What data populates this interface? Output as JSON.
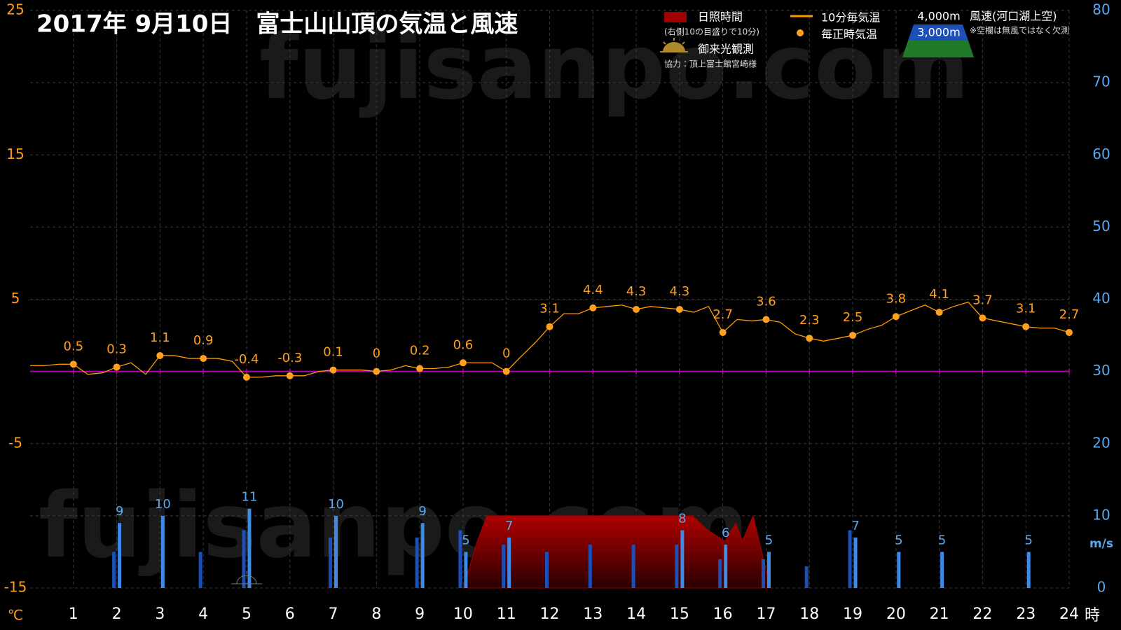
{
  "chart_data": {
    "type": "combo",
    "title": "2017年  9月10日　富士山山頂の気温と風速",
    "watermark": "fujisanpo.com",
    "xlabel": "時",
    "ylabel": "℃",
    "y2label": "m/s",
    "xlim": [
      0,
      24
    ],
    "xticks": [
      1,
      2,
      3,
      4,
      5,
      6,
      7,
      8,
      9,
      10,
      11,
      12,
      13,
      14,
      15,
      16,
      17,
      18,
      19,
      20,
      21,
      22,
      23,
      24
    ],
    "ylim": [
      -15,
      25
    ],
    "yticks": [
      -15,
      -5,
      5,
      15,
      25
    ],
    "y2lim": [
      0,
      80
    ],
    "y2ticks": [
      0,
      10,
      20,
      30,
      40,
      50,
      60,
      70,
      80
    ],
    "grid": true,
    "reference_line": {
      "value": 0,
      "color": "#b000b0"
    },
    "legend": "top-right",
    "legend_notes": [
      "(右側10の目盛りで10分)",
      "協力：頂上富士館宮崎様",
      "風速(河口湖上空)",
      "※空欄は無風ではなく欠測"
    ],
    "sunrise": {
      "name": "御来光観測",
      "x": 5
    },
    "series": [
      {
        "name": "10分毎気温",
        "type": "line",
        "color": "#ff9900",
        "x": [
          0,
          0.33,
          0.67,
          1,
          1.33,
          1.67,
          2,
          2.33,
          2.67,
          3,
          3.33,
          3.67,
          4,
          4.33,
          4.67,
          5,
          5.33,
          5.67,
          6,
          6.33,
          6.67,
          7,
          7.33,
          7.67,
          8,
          8.33,
          8.67,
          9,
          9.33,
          9.67,
          10,
          10.33,
          10.67,
          11,
          11.33,
          11.67,
          12,
          12.33,
          12.67,
          13,
          13.33,
          13.67,
          14,
          14.33,
          14.67,
          15,
          15.33,
          15.67,
          16,
          16.33,
          16.67,
          17,
          17.33,
          17.67,
          18,
          18.33,
          18.67,
          19,
          19.33,
          19.67,
          20,
          20.33,
          20.67,
          21,
          21.33,
          21.67,
          22,
          22.33,
          22.67,
          23,
          23.33,
          23.67,
          24
        ],
        "values": [
          0.4,
          0.4,
          0.5,
          0.5,
          -0.2,
          -0.1,
          0.3,
          0.6,
          -0.2,
          1.1,
          1.1,
          0.9,
          0.9,
          0.9,
          0.7,
          -0.4,
          -0.4,
          -0.3,
          -0.3,
          -0.3,
          0.0,
          0.1,
          0.1,
          0.1,
          0,
          0.1,
          0.4,
          0.2,
          0.2,
          0.3,
          0.6,
          0.6,
          0.6,
          0,
          1.0,
          2.0,
          3.1,
          4.0,
          4.0,
          4.4,
          4.5,
          4.6,
          4.3,
          4.5,
          4.4,
          4.3,
          4.1,
          4.5,
          2.7,
          3.6,
          3.5,
          3.6,
          3.4,
          2.6,
          2.3,
          2.1,
          2.3,
          2.5,
          2.9,
          3.2,
          3.8,
          4.2,
          4.6,
          4.1,
          4.5,
          4.8,
          3.7,
          3.5,
          3.3,
          3.1,
          3.0,
          3.0,
          2.7
        ]
      },
      {
        "name": "毎正時気温",
        "type": "scatter",
        "color": "#ffa020",
        "labels": true,
        "x": [
          1,
          2,
          3,
          4,
          5,
          6,
          7,
          8,
          9,
          10,
          11,
          12,
          13,
          14,
          15,
          16,
          17,
          18,
          19,
          20,
          21,
          22,
          23,
          24
        ],
        "values": [
          0.5,
          0.3,
          1.1,
          0.9,
          -0.4,
          -0.3,
          0.1,
          0,
          0.2,
          0.6,
          0,
          3.1,
          4.4,
          4.3,
          4.3,
          2.7,
          3.6,
          2.3,
          2.5,
          3.8,
          4.1,
          3.7,
          3.1,
          2.7
        ]
      },
      {
        "name": "日照時間",
        "type": "area",
        "axis": "y2",
        "color": "#a00000",
        "x": [
          10,
          10.33,
          10.55,
          15.3,
          15.65,
          16.05,
          16.3,
          16.45,
          16.7,
          17.1
        ],
        "values": [
          0,
          6.5,
          10,
          10,
          8,
          6.5,
          9,
          6.5,
          10,
          0
        ]
      },
      {
        "name": "4,000m",
        "type": "bar",
        "axis": "y2",
        "color": "#3f8ae6",
        "labels": true,
        "x": [
          1,
          2,
          3,
          4,
          5,
          6,
          7,
          8,
          9,
          10,
          11,
          12,
          13,
          14,
          15,
          16,
          17,
          18,
          19,
          20,
          21,
          22,
          23,
          24
        ],
        "values": [
          null,
          9,
          10,
          null,
          11,
          null,
          10,
          null,
          9,
          5,
          7,
          null,
          null,
          null,
          8,
          6,
          5,
          null,
          7,
          5,
          5,
          null,
          5,
          null
        ]
      },
      {
        "name": "3,000m",
        "type": "bar",
        "axis": "y2",
        "color": "#1c4fb8",
        "labels": false,
        "x": [
          1,
          2,
          3,
          4,
          5,
          6,
          7,
          8,
          9,
          10,
          11,
          12,
          13,
          14,
          15,
          16,
          17,
          18,
          19,
          20,
          21,
          22,
          23,
          24
        ],
        "values": [
          null,
          5,
          null,
          5,
          8,
          null,
          7,
          null,
          7,
          8,
          6,
          5,
          6,
          6,
          6,
          4,
          4,
          3,
          8,
          null,
          null,
          null,
          null,
          null
        ]
      }
    ]
  }
}
